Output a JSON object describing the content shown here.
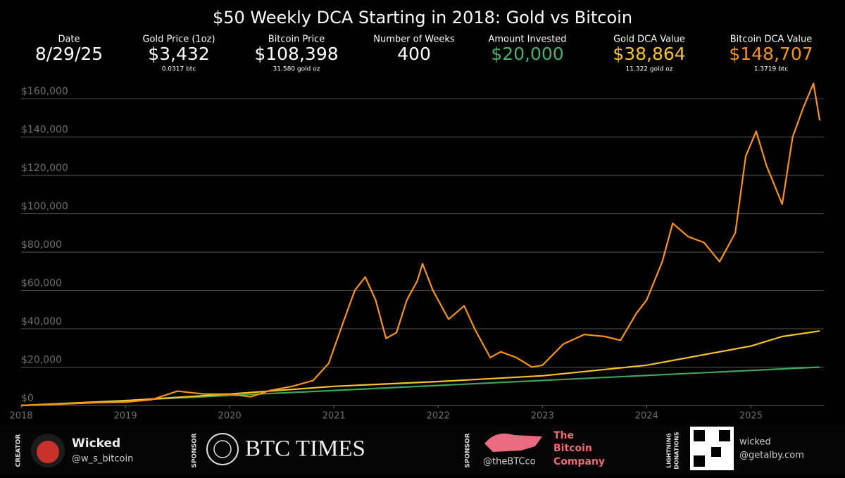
{
  "stats": [
    {
      "label": "Date",
      "value": "8/29/25",
      "color": "#ffffff"
    },
    {
      "label": "Gold Price (1oz)",
      "value": "$3,432",
      "sub": "0.0317 btc",
      "color": "#ffffff"
    },
    {
      "label": "Bitcoin Price",
      "value": "$108,398",
      "sub": "31.580 gold oz",
      "color": "#ffffff"
    },
    {
      "label": "Number of Weeks",
      "value": "400",
      "color": "#ffffff"
    },
    {
      "label": "Amount Invested",
      "value": "$20,000",
      "color": "#4caf6a"
    },
    {
      "label": "Gold DCA Value",
      "value": "$38,864",
      "sub": "11.322 gold oz",
      "color": "#f5c431"
    },
    {
      "label": "Bitcoin DCA Value",
      "value": "$148,707",
      "sub": "1.3719 btc",
      "color": "#f7931a"
    }
  ],
  "chart_data": {
    "type": "line",
    "title": "$50 Weekly DCA Starting in 2018: Gold vs Bitcoin",
    "xlim": [
      2018,
      2025.7
    ],
    "xticks": [
      2018,
      2019,
      2020,
      2021,
      2022,
      2023,
      2024,
      2025
    ],
    "ylim": [
      0,
      170000
    ],
    "yticks": [
      {
        "value": 0,
        "label": "$0"
      },
      {
        "value": 20000,
        "label": "$20,000"
      },
      {
        "value": 40000,
        "label": "$40,000"
      },
      {
        "value": 60000,
        "label": "$60,000"
      },
      {
        "value": 80000,
        "label": "$80,000"
      },
      {
        "value": 100000,
        "label": "$100,000"
      },
      {
        "value": 120000,
        "label": "$120,000"
      },
      {
        "value": 140000,
        "label": "$140,000"
      },
      {
        "value": 160000,
        "label": "$160,000"
      }
    ],
    "grid": true,
    "series": [
      {
        "color": "#f7931a",
        "x": [
          2018,
          2018.25,
          2018.5,
          2018.75,
          2019,
          2019.25,
          2019.5,
          2019.75,
          2020,
          2020.2,
          2020.4,
          2020.6,
          2020.8,
          2020.95,
          2021.1,
          2021.2,
          2021.3,
          2021.4,
          2021.5,
          2021.6,
          2021.7,
          2021.8,
          2021.85,
          2021.95,
          2022.1,
          2022.25,
          2022.35,
          2022.5,
          2022.6,
          2022.75,
          2022.9,
          2023,
          2023.2,
          2023.4,
          2023.6,
          2023.75,
          2023.9,
          2024,
          2024.15,
          2024.25,
          2024.4,
          2024.55,
          2024.7,
          2024.85,
          2024.95,
          2025.05,
          2025.15,
          2025.3,
          2025.4,
          2025.5,
          2025.6,
          2025.66
        ],
        "values": [
          0,
          500,
          1000,
          1500,
          1800,
          3000,
          7500,
          6000,
          6000,
          4500,
          8000,
          10000,
          13000,
          22000,
          45000,
          60000,
          67000,
          55000,
          35000,
          38000,
          55000,
          65000,
          74000,
          60000,
          45000,
          52000,
          40000,
          25000,
          28000,
          25000,
          20000,
          21000,
          32000,
          37000,
          36000,
          34000,
          48000,
          55000,
          75000,
          95000,
          88000,
          85000,
          75000,
          90000,
          130000,
          143000,
          125000,
          105000,
          140000,
          155000,
          168000,
          148707
        ]
      },
      {
        "color": "#f5c431",
        "x": [
          2018,
          2019,
          2020,
          2021,
          2022,
          2023,
          2024,
          2024.5,
          2025,
          2025.3,
          2025.66
        ],
        "values": [
          0,
          2500,
          6000,
          10000,
          12500,
          15500,
          21000,
          26000,
          31000,
          36000,
          38864
        ]
      },
      {
        "color": "#3fa35a",
        "x": [
          2018,
          2025.66
        ],
        "values": [
          0,
          20000
        ]
      }
    ]
  },
  "footer": {
    "creator_tag": "CREATOR",
    "creator_name": "Wicked",
    "creator_handle": "@w_s_bitcoin",
    "sponsor_tag_1": "SPONSOR",
    "sponsor_1": "BTC TIMES",
    "sponsor_tag_2": "SPONSOR",
    "sponsor_2_handle": "@theBTCco",
    "sponsor_2_name": [
      "The",
      "Bitcoin",
      "Company"
    ],
    "donation_tag": [
      "LIGHTNING",
      "DONATIONS"
    ],
    "donation_name": "wicked",
    "donation_address": "@getalby.com"
  }
}
